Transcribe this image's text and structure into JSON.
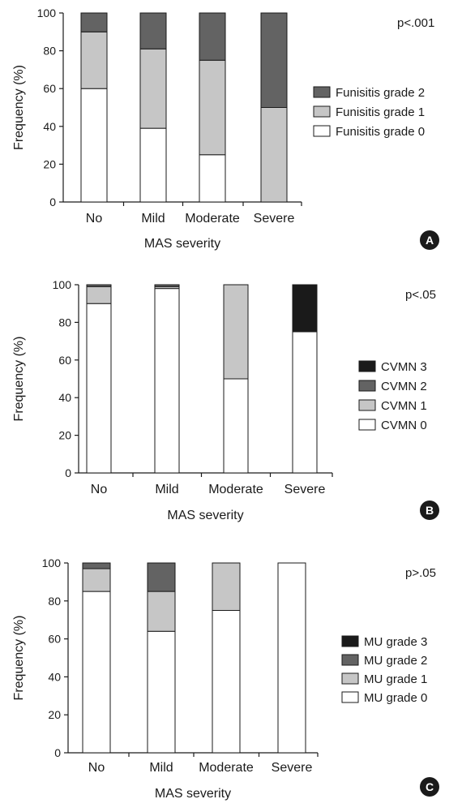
{
  "chart_data": [
    {
      "type": "bar",
      "stacked": true,
      "panel_label": "A",
      "p_value": "p<.001",
      "categories": [
        "No",
        "Mild",
        "Moderate",
        "Severe"
      ],
      "xlabel": "MAS severity",
      "ylabel": "Frequency (%)",
      "ylim": [
        0,
        100
      ],
      "yticks": [
        0,
        20,
        40,
        60,
        80,
        100
      ],
      "legend_position": "right",
      "series": [
        {
          "name": "Funisitis grade 0",
          "color": "#ffffff",
          "values": [
            60,
            39,
            25,
            0
          ]
        },
        {
          "name": "Funisitis grade 1",
          "color": "#c6c6c6",
          "values": [
            30,
            42,
            50,
            50
          ]
        },
        {
          "name": "Funisitis grade 2",
          "color": "#636363",
          "values": [
            10,
            19,
            25,
            50
          ]
        }
      ]
    },
    {
      "type": "bar",
      "stacked": true,
      "panel_label": "B",
      "p_value": "p<.05",
      "categories": [
        "No",
        "Mild",
        "Moderate",
        "Severe"
      ],
      "xlabel": "MAS severity",
      "ylabel": "Frequency (%)",
      "ylim": [
        0,
        100
      ],
      "yticks": [
        0,
        20,
        40,
        60,
        80,
        100
      ],
      "legend_position": "right",
      "series": [
        {
          "name": "CVMN 0",
          "color": "#ffffff",
          "values": [
            90,
            98,
            50,
            75
          ]
        },
        {
          "name": "CVMN 1",
          "color": "#c6c6c6",
          "values": [
            9,
            1,
            50,
            0
          ]
        },
        {
          "name": "CVMN 2",
          "color": "#636363",
          "values": [
            1,
            1,
            0,
            0
          ]
        },
        {
          "name": "CVMN 3",
          "color": "#1a1a1a",
          "values": [
            0,
            0,
            0,
            25
          ]
        }
      ]
    },
    {
      "type": "bar",
      "stacked": true,
      "panel_label": "C",
      "p_value": "p>.05",
      "categories": [
        "No",
        "Mild",
        "Moderate",
        "Severe"
      ],
      "xlabel": "MAS severity",
      "ylabel": "Frequency (%)",
      "ylim": [
        0,
        100
      ],
      "yticks": [
        0,
        20,
        40,
        60,
        80,
        100
      ],
      "legend_position": "right",
      "series": [
        {
          "name": "MU grade 0",
          "color": "#ffffff",
          "values": [
            85,
            64,
            75,
            100
          ]
        },
        {
          "name": "MU grade 1",
          "color": "#c6c6c6",
          "values": [
            12,
            21,
            25,
            0
          ]
        },
        {
          "name": "MU grade 2",
          "color": "#636363",
          "values": [
            3,
            15,
            0,
            0
          ]
        },
        {
          "name": "MU grade 3",
          "color": "#1a1a1a",
          "values": [
            0,
            0,
            0,
            0
          ]
        }
      ]
    }
  ]
}
